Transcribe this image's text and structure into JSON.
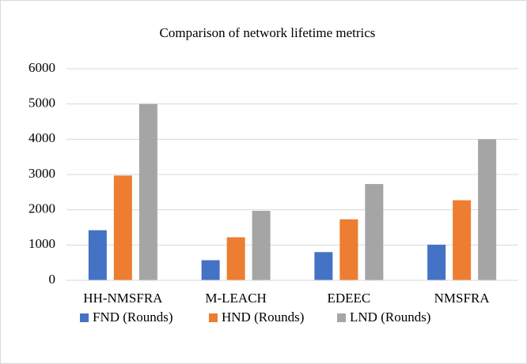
{
  "chart_data": {
    "type": "bar",
    "title": "Comparison of network lifetime metrics",
    "categories": [
      "HH-NMSFRA",
      "M-LEACH",
      "EDEEC",
      "NMSFRA"
    ],
    "series": [
      {
        "name": "FND (Rounds)",
        "color": "#4472c4",
        "values": [
          1420,
          570,
          800,
          1010
        ]
      },
      {
        "name": "HND (Rounds)",
        "color": "#ed7d31",
        "values": [
          2970,
          1220,
          1730,
          2270
        ]
      },
      {
        "name": "LND (Rounds)",
        "color": "#a5a5a5",
        "values": [
          5000,
          1970,
          2730,
          4000
        ]
      }
    ],
    "ylim": [
      0,
      6000
    ],
    "yticks": [
      0,
      1000,
      2000,
      3000,
      4000,
      5000,
      6000
    ],
    "grid": true,
    "legend": "bottom"
  }
}
